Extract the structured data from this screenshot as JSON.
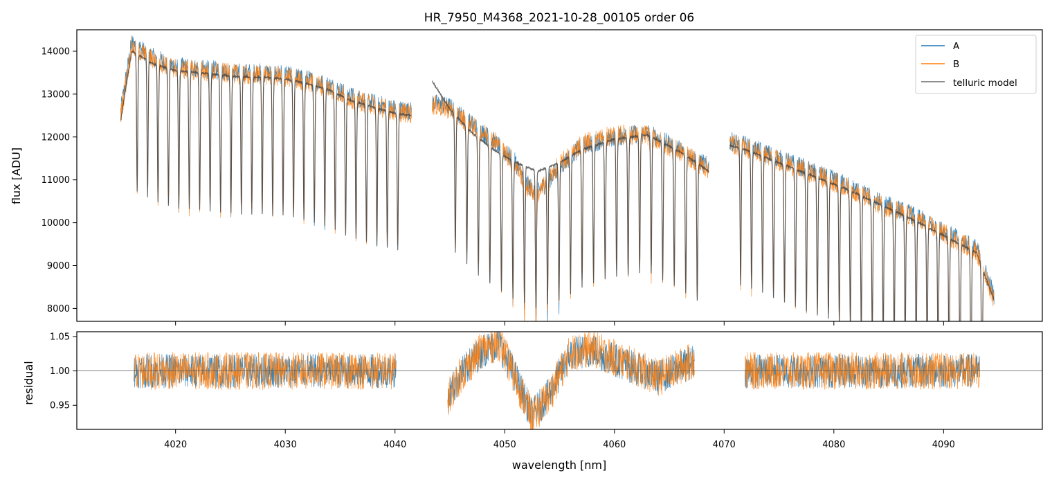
{
  "chart_data": [
    {
      "type": "line",
      "panel": "top",
      "title": "HR_7950_M4368_2021-10-28_00105  order 06",
      "xlabel": "",
      "ylabel": "flux [ADU]",
      "xlim": [
        4011,
        4099
      ],
      "ylim": [
        7700,
        14500
      ],
      "yticks": [
        8000,
        9000,
        10000,
        11000,
        12000,
        13000,
        14000
      ],
      "grid": false,
      "legend_position": "top-right",
      "legend": [
        "A",
        "B",
        "telluric model"
      ],
      "segments": [
        [
          4015,
          4041.5
        ],
        [
          4043.4,
          4068.6
        ],
        [
          4070.5,
          4094.6
        ]
      ],
      "series": [
        {
          "name": "A",
          "color": "#1f77b4",
          "x": [
            4015,
            4016,
            4018,
            4020,
            4022,
            4024,
            4026,
            4028,
            4030,
            4032,
            4034,
            4036,
            4038,
            4040,
            4041.5,
            4043.4,
            4045,
            4047,
            4049,
            4051,
            4052,
            4053,
            4055,
            4057,
            4060,
            4063,
            4066,
            4068.6,
            4070.5,
            4072,
            4075,
            4078,
            4081,
            4084,
            4087,
            4090,
            4093,
            4094.6
          ],
          "values": [
            12600,
            14200,
            13850,
            13650,
            13600,
            13550,
            13500,
            13500,
            13450,
            13350,
            13200,
            12950,
            12800,
            12650,
            12600,
            12800,
            12700,
            12300,
            11900,
            11400,
            10900,
            10700,
            11300,
            11800,
            12000,
            12100,
            11700,
            11300,
            11900,
            11800,
            11500,
            11200,
            10900,
            10500,
            10200,
            9800,
            9400,
            8300
          ]
        },
        {
          "name": "B",
          "color": "#ff7f0e",
          "x": [
            4015,
            4016,
            4018,
            4020,
            4022,
            4024,
            4026,
            4028,
            4030,
            4032,
            4034,
            4036,
            4038,
            4040,
            4041.5,
            4043.4,
            4045,
            4047,
            4049,
            4051,
            4052,
            4053,
            4055,
            4057,
            4060,
            4063,
            4066,
            4068.6,
            4070.5,
            4072,
            4075,
            4078,
            4081,
            4084,
            4087,
            4090,
            4093,
            4094.6
          ],
          "values": [
            12500,
            14100,
            13800,
            13600,
            13550,
            13500,
            13450,
            13450,
            13400,
            13300,
            13150,
            12900,
            12750,
            12600,
            12550,
            12750,
            12650,
            12250,
            11950,
            11350,
            10850,
            10650,
            11350,
            11850,
            12050,
            12050,
            11650,
            11250,
            11850,
            11750,
            11450,
            11150,
            10850,
            10450,
            10150,
            9750,
            9350,
            8200
          ]
        },
        {
          "name": "telluric model",
          "color": "#444444",
          "x": [
            4015,
            4016,
            4018,
            4020,
            4022,
            4024,
            4026,
            4028,
            4030,
            4032,
            4034,
            4036,
            4038,
            4040,
            4041.5,
            4043.4,
            4045,
            4047,
            4049,
            4051,
            4052,
            4053,
            4055,
            4057,
            4060,
            4063,
            4066,
            4068.6,
            4070.5,
            4072,
            4075,
            4078,
            4081,
            4084,
            4087,
            4090,
            4093,
            4094.6
          ],
          "values": [
            12400,
            14000,
            13700,
            13550,
            13500,
            13450,
            13400,
            13400,
            13350,
            13250,
            13100,
            12850,
            12700,
            12550,
            12500,
            13300,
            12650,
            12100,
            11700,
            11400,
            11300,
            11200,
            11400,
            11700,
            11950,
            12050,
            11650,
            11200,
            11800,
            11700,
            11400,
            11100,
            10800,
            10450,
            10100,
            9700,
            9300,
            8200
          ]
        }
      ]
    },
    {
      "type": "line",
      "panel": "bottom",
      "xlabel": "wavelength [nm]",
      "ylabel": "residual",
      "xlim": [
        4011,
        4099
      ],
      "ylim": [
        0.915,
        1.057
      ],
      "yticks": [
        0.95,
        1.0,
        1.05
      ],
      "ytick_labels": [
        "0.95",
        "1.00",
        "1.05"
      ],
      "xticks": [
        4020,
        4030,
        4040,
        4050,
        4060,
        4070,
        4080,
        4090
      ],
      "reference_line": 1.0,
      "segments": [
        [
          4016.2,
          4040.1
        ],
        [
          4044.8,
          4067.3
        ],
        [
          4071.9,
          4093.3
        ]
      ],
      "series": [
        {
          "name": "A",
          "color": "#1f77b4",
          "x": [
            4016.2,
            4020,
            4025,
            4030,
            4035,
            4040.1,
            4044.8,
            4046,
            4048,
            4049.5,
            4051,
            4052.5,
            4054,
            4056,
            4058,
            4061,
            4064,
            4067.3,
            4071.9,
            4076,
            4080,
            4085,
            4090,
            4093.3
          ],
          "values": [
            1.0,
            1.0,
            1.0,
            1.0,
            1.0,
            1.0,
            0.962,
            0.995,
            1.03,
            1.04,
            0.99,
            0.935,
            0.965,
            1.025,
            1.03,
            1.01,
            0.99,
            1.015,
            1.0,
            1.0,
            1.0,
            1.0,
            1.0,
            1.0
          ]
        },
        {
          "name": "B",
          "color": "#ff7f0e",
          "x": [
            4016.2,
            4020,
            4025,
            4030,
            4035,
            4040.1,
            4044.8,
            4046,
            4048,
            4049.5,
            4051,
            4052.5,
            4054,
            4056,
            4058,
            4061,
            4064,
            4067.3,
            4071.9,
            4076,
            4080,
            4085,
            4090,
            4093.3
          ],
          "values": [
            1.0,
            1.0,
            1.0,
            1.0,
            1.0,
            1.0,
            0.96,
            0.995,
            1.032,
            1.042,
            0.988,
            0.932,
            0.963,
            1.027,
            1.032,
            1.012,
            0.99,
            1.017,
            1.0,
            1.0,
            1.0,
            1.0,
            1.0,
            1.0
          ]
        }
      ]
    }
  ]
}
